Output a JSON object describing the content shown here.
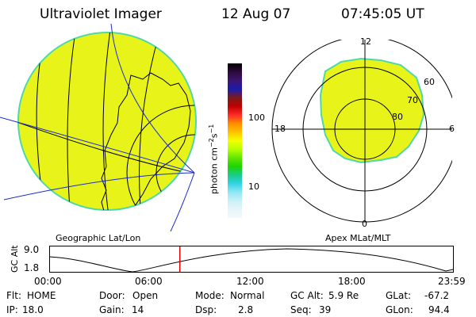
{
  "header": {
    "title": "Ultraviolet Imager",
    "date": "12 Aug 07",
    "time": "07:45:05 UT"
  },
  "colorbar": {
    "unit_text": "photon cm",
    "unit_sup1": "−2",
    "unit_s": "s",
    "unit_sup2": "−1",
    "ticks": [
      "100",
      "10"
    ],
    "colors": [
      "#000000",
      "#2b0a3d",
      "#3d1470",
      "#1b1bb0",
      "#7a1a1a",
      "#c00000",
      "#ff2a2a",
      "#ff8c00",
      "#ffc200",
      "#f3ff00",
      "#b6ff00",
      "#63e600",
      "#1fd400",
      "#18cc8a",
      "#33d2e6",
      "#8fe7f3",
      "#c9f0f7",
      "#e6f5f9",
      "#f3f8fb"
    ]
  },
  "left_panel": {
    "caption": "Geographic Lat/Lon",
    "fill_color": "#e8f31a",
    "edge_color": "#4fd8a8"
  },
  "right_panel": {
    "caption": "Apex MLat/MLT",
    "mlt_labels": {
      "top": "12",
      "left": "18",
      "right": "6",
      "bottom": "0"
    },
    "mlat_labels": [
      "60",
      "70",
      "80"
    ],
    "fill_color": "#e8f31a"
  },
  "altitude_plot": {
    "ylabel": "GC Alt",
    "y_max": "9.0",
    "y_min": "1.8",
    "x_ticks": [
      "00:00",
      "06:00",
      "12:00",
      "18:00",
      "23:59"
    ],
    "current_time_fraction": 0.323,
    "marker_color": "#e00000"
  },
  "info": {
    "row1": [
      {
        "label": "Flt:",
        "value": "HOME"
      },
      {
        "label": "Door:",
        "value": "Open"
      },
      {
        "label": "Mode:",
        "value": "Normal"
      },
      {
        "label": "GC Alt:",
        "value": "5.9 Re"
      },
      {
        "label": "GLat:",
        "value": "-67.2"
      }
    ],
    "row2": [
      {
        "label": "IP:",
        "value": "18.0"
      },
      {
        "label": "Gain:",
        "value": "14"
      },
      {
        "label": "Dsp:",
        "value": "2.8"
      },
      {
        "label": "Seq:",
        "value": "39"
      },
      {
        "label": "GLon:",
        "value": "94.4"
      }
    ]
  }
}
